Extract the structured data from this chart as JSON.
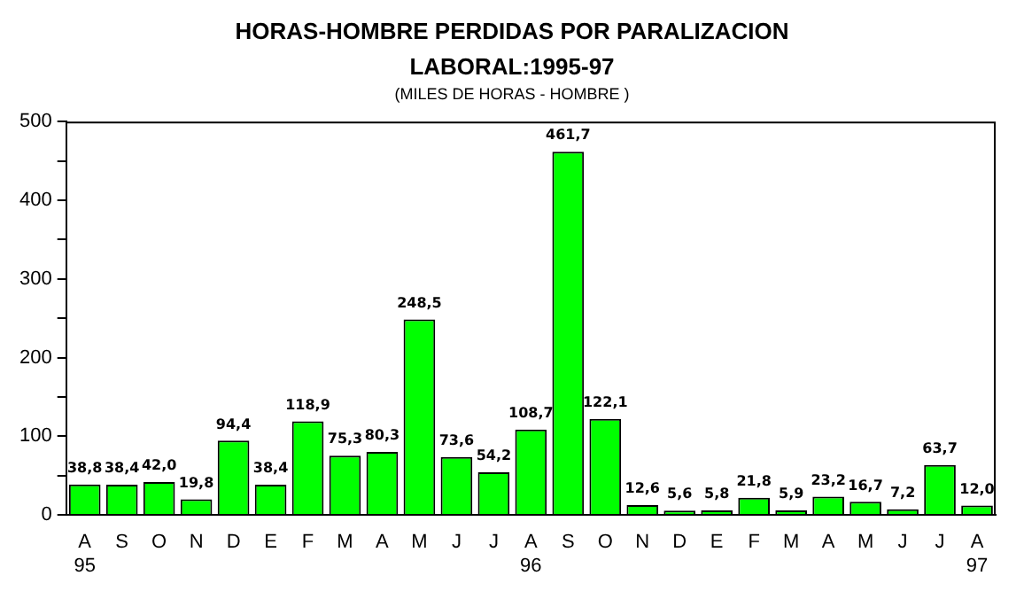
{
  "chart_data": {
    "type": "bar",
    "title": "HORAS-HOMBRE PERDIDAS POR PARALIZACION LABORAL:1995-97",
    "subtitle": "(MILES DE HORAS - HOMBRE )",
    "categories": [
      "A\n95",
      "S",
      "O",
      "N",
      "D",
      "E",
      "F",
      "M",
      "A",
      "M",
      "J",
      "J",
      "A\n96",
      "S",
      "O",
      "N",
      "D",
      "E",
      "F",
      "M",
      "A",
      "M",
      "J",
      "J",
      "A\n97"
    ],
    "values": [
      38.8,
      38.4,
      42.0,
      19.8,
      94.4,
      38.4,
      118.9,
      75.3,
      80.3,
      248.5,
      73.6,
      54.2,
      108.7,
      461.7,
      122.1,
      12.6,
      5.6,
      5.8,
      21.8,
      5.9,
      23.2,
      16.7,
      7.2,
      63.7,
      12.0
    ],
    "value_labels": [
      "38,8",
      "38,4",
      "42,0",
      "19,8",
      "94,4",
      "38,4",
      "118,9",
      "75,3",
      "80,3",
      "248,5",
      "73,6",
      "54,2",
      "108,7",
      "461,7",
      "122,1",
      "12,6",
      "5,6",
      "5,8",
      "21,8",
      "5,9",
      "23,2",
      "16,7",
      "7,2",
      "63,7",
      "12,0"
    ],
    "color": "#00ff00",
    "ylim": [
      0,
      500
    ],
    "yticks": [
      0,
      {
        "value": 50,
        "label": null
      },
      100,
      {
        "value": 150,
        "label": null
      },
      200,
      {
        "value": 250,
        "label": null
      },
      300,
      {
        "value": 350,
        "label": null
      },
      400,
      {
        "value": 450,
        "label": null
      },
      500
    ],
    "grid": false,
    "legend": false
  }
}
